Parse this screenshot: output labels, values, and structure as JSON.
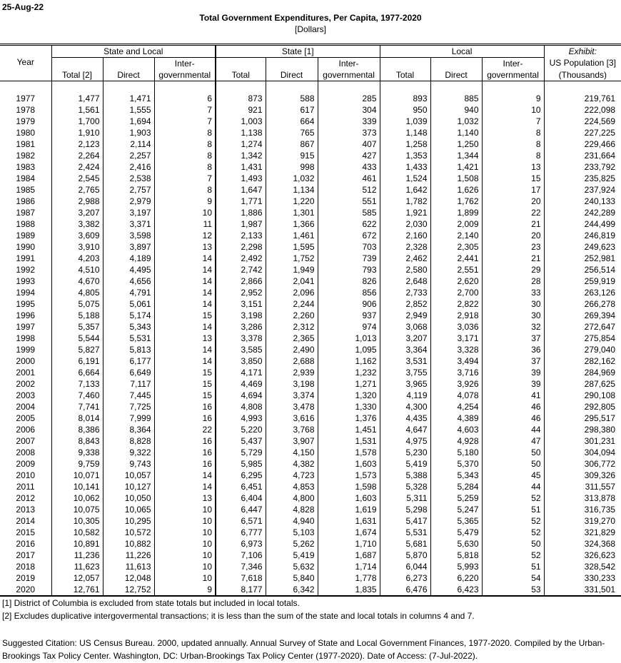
{
  "date": "25-Aug-22",
  "title": "Total Government Expenditures, Per Capita, 1977-2020",
  "subtitle": "[Dollars]",
  "headers": {
    "year": "Year",
    "groups": [
      "State and Local",
      "State [1]",
      "Local",
      "Exhibit:"
    ],
    "pop_line1": "US Population [3]",
    "pop_line2": "(Thousands)",
    "inter_top": "Inter-",
    "inter_bottom": "governmental",
    "sl_total": "Total [2]",
    "total": "Total",
    "direct": "Direct"
  },
  "rows": [
    [
      "1977",
      "1,477",
      "1,471",
      "6",
      "873",
      "588",
      "285",
      "893",
      "885",
      "9",
      "219,761"
    ],
    [
      "1978",
      "1,561",
      "1,555",
      "7",
      "921",
      "617",
      "304",
      "950",
      "940",
      "10",
      "222,098"
    ],
    [
      "1979",
      "1,700",
      "1,694",
      "7",
      "1,003",
      "664",
      "339",
      "1,039",
      "1,032",
      "7",
      "224,569"
    ],
    [
      "1980",
      "1,910",
      "1,903",
      "8",
      "1,138",
      "765",
      "373",
      "1,148",
      "1,140",
      "8",
      "227,225"
    ],
    [
      "1981",
      "2,123",
      "2,114",
      "8",
      "1,274",
      "867",
      "407",
      "1,258",
      "1,250",
      "8",
      "229,466"
    ],
    [
      "1982",
      "2,264",
      "2,257",
      "8",
      "1,342",
      "915",
      "427",
      "1,353",
      "1,344",
      "8",
      "231,664"
    ],
    [
      "1983",
      "2,424",
      "2,416",
      "8",
      "1,431",
      "998",
      "433",
      "1,433",
      "1,421",
      "13",
      "233,792"
    ],
    [
      "1984",
      "2,545",
      "2,538",
      "7",
      "1,493",
      "1,032",
      "461",
      "1,524",
      "1,508",
      "15",
      "235,825"
    ],
    [
      "1985",
      "2,765",
      "2,757",
      "8",
      "1,647",
      "1,134",
      "512",
      "1,642",
      "1,626",
      "17",
      "237,924"
    ],
    [
      "1986",
      "2,988",
      "2,979",
      "9",
      "1,771",
      "1,220",
      "551",
      "1,782",
      "1,762",
      "20",
      "240,133"
    ],
    [
      "1987",
      "3,207",
      "3,197",
      "10",
      "1,886",
      "1,301",
      "585",
      "1,921",
      "1,899",
      "22",
      "242,289"
    ],
    [
      "1988",
      "3,382",
      "3,371",
      "11",
      "1,987",
      "1,366",
      "622",
      "2,030",
      "2,009",
      "21",
      "244,499"
    ],
    [
      "1989",
      "3,609",
      "3,598",
      "12",
      "2,133",
      "1,461",
      "672",
      "2,160",
      "2,140",
      "20",
      "246,819"
    ],
    [
      "1990",
      "3,910",
      "3,897",
      "13",
      "2,298",
      "1,595",
      "703",
      "2,328",
      "2,305",
      "23",
      "249,623"
    ],
    [
      "1991",
      "4,203",
      "4,189",
      "14",
      "2,492",
      "1,752",
      "739",
      "2,462",
      "2,441",
      "21",
      "252,981"
    ],
    [
      "1992",
      "4,510",
      "4,495",
      "14",
      "2,742",
      "1,949",
      "793",
      "2,580",
      "2,551",
      "29",
      "256,514"
    ],
    [
      "1993",
      "4,670",
      "4,656",
      "14",
      "2,866",
      "2,041",
      "826",
      "2,648",
      "2,620",
      "28",
      "259,919"
    ],
    [
      "1994",
      "4,805",
      "4,791",
      "14",
      "2,952",
      "2,096",
      "856",
      "2,733",
      "2,700",
      "33",
      "263,126"
    ],
    [
      "1995",
      "5,075",
      "5,061",
      "14",
      "3,151",
      "2,244",
      "906",
      "2,852",
      "2,822",
      "30",
      "266,278"
    ],
    [
      "1996",
      "5,188",
      "5,174",
      "15",
      "3,198",
      "2,260",
      "937",
      "2,949",
      "2,918",
      "30",
      "269,394"
    ],
    [
      "1997",
      "5,357",
      "5,343",
      "14",
      "3,286",
      "2,312",
      "974",
      "3,068",
      "3,036",
      "32",
      "272,647"
    ],
    [
      "1998",
      "5,544",
      "5,531",
      "13",
      "3,378",
      "2,365",
      "1,013",
      "3,207",
      "3,171",
      "37",
      "275,854"
    ],
    [
      "1999",
      "5,827",
      "5,813",
      "14",
      "3,585",
      "2,490",
      "1,095",
      "3,364",
      "3,328",
      "36",
      "279,040"
    ],
    [
      "2000",
      "6,191",
      "6,177",
      "14",
      "3,850",
      "2,688",
      "1,162",
      "3,531",
      "3,494",
      "37",
      "282,162"
    ],
    [
      "2001",
      "6,664",
      "6,649",
      "15",
      "4,171",
      "2,939",
      "1,232",
      "3,755",
      "3,716",
      "39",
      "284,969"
    ],
    [
      "2002",
      "7,133",
      "7,117",
      "15",
      "4,469",
      "3,198",
      "1,271",
      "3,965",
      "3,926",
      "39",
      "287,625"
    ],
    [
      "2003",
      "7,460",
      "7,445",
      "15",
      "4,694",
      "3,374",
      "1,320",
      "4,119",
      "4,078",
      "41",
      "290,108"
    ],
    [
      "2004",
      "7,741",
      "7,725",
      "16",
      "4,808",
      "3,478",
      "1,330",
      "4,300",
      "4,254",
      "46",
      "292,805"
    ],
    [
      "2005",
      "8,014",
      "7,999",
      "16",
      "4,993",
      "3,616",
      "1,376",
      "4,435",
      "4,389",
      "46",
      "295,517"
    ],
    [
      "2006",
      "8,386",
      "8,364",
      "22",
      "5,220",
      "3,768",
      "1,451",
      "4,647",
      "4,603",
      "44",
      "298,380"
    ],
    [
      "2007",
      "8,843",
      "8,828",
      "16",
      "5,437",
      "3,907",
      "1,531",
      "4,975",
      "4,928",
      "47",
      "301,231"
    ],
    [
      "2008",
      "9,338",
      "9,322",
      "16",
      "5,729",
      "4,150",
      "1,578",
      "5,230",
      "5,180",
      "50",
      "304,094"
    ],
    [
      "2009",
      "9,759",
      "9,743",
      "16",
      "5,985",
      "4,382",
      "1,603",
      "5,419",
      "5,370",
      "50",
      "306,772"
    ],
    [
      "2010",
      "10,071",
      "10,057",
      "14",
      "6,295",
      "4,723",
      "1,573",
      "5,388",
      "5,343",
      "45",
      "309,326"
    ],
    [
      "2011",
      "10,141",
      "10,127",
      "14",
      "6,451",
      "4,853",
      "1,598",
      "5,328",
      "5,284",
      "44",
      "311,557"
    ],
    [
      "2012",
      "10,062",
      "10,050",
      "13",
      "6,404",
      "4,800",
      "1,603",
      "5,311",
      "5,259",
      "52",
      "313,878"
    ],
    [
      "2013",
      "10,075",
      "10,065",
      "10",
      "6,447",
      "4,828",
      "1,619",
      "5,298",
      "5,247",
      "51",
      "316,735"
    ],
    [
      "2014",
      "10,305",
      "10,295",
      "10",
      "6,571",
      "4,940",
      "1,631",
      "5,417",
      "5,365",
      "52",
      "319,270"
    ],
    [
      "2015",
      "10,582",
      "10,572",
      "10",
      "6,777",
      "5,103",
      "1,674",
      "5,531",
      "5,479",
      "52",
      "321,829"
    ],
    [
      "2016",
      "10,891",
      "10,882",
      "10",
      "6,973",
      "5,262",
      "1,710",
      "5,681",
      "5,630",
      "50",
      "324,368"
    ],
    [
      "2017",
      "11,236",
      "11,226",
      "10",
      "7,106",
      "5,419",
      "1,687",
      "5,870",
      "5,818",
      "52",
      "326,623"
    ],
    [
      "2018",
      "11,623",
      "11,613",
      "10",
      "7,346",
      "5,632",
      "1,714",
      "6,044",
      "5,993",
      "51",
      "328,542"
    ],
    [
      "2019",
      "12,057",
      "12,048",
      "10",
      "7,618",
      "5,840",
      "1,778",
      "6,273",
      "6,220",
      "54",
      "330,233"
    ],
    [
      "2020",
      "12,761",
      "12,752",
      "9",
      "8,177",
      "6,342",
      "1,835",
      "6,476",
      "6,423",
      "53",
      "331,501"
    ]
  ],
  "notes": [
    "[1] District of Columbia is excluded from state totals but included in local totals.",
    "[2] Excludes duplicative intergovermental transactions; it is less than the sum of the state and local totals in columns 4 and 7."
  ],
  "citation": "Suggested Citation: US Census Bureau. 2000, updated annually. Annual Survey of State and Local Government Finances, 1977-2020. Compiled by the Urban-Brookings Tax Policy Center. Washington, DC: Urban-Brookings Tax Policy Center (1977-2020). Date of Access: (7-Jul-2022)."
}
